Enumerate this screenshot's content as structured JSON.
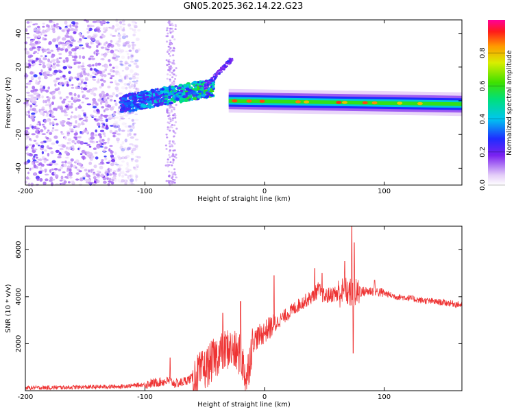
{
  "title": "GN05.2025.362.14.22.G23",
  "chart_data": [
    {
      "type": "heatmap",
      "xlabel": "Height of straight line (km)",
      "ylabel": "Frequency (Hz)",
      "xlim": [
        -200,
        165
      ],
      "ylim": [
        -50,
        48
      ],
      "xticks": [
        "-200",
        "-100",
        "0",
        "100"
      ],
      "xtick_values": [
        -200,
        -100,
        0,
        100
      ],
      "yticks": [
        "-40",
        "-20",
        "0",
        "20",
        "40"
      ],
      "ytick_values": [
        -40,
        -20,
        0,
        20,
        40
      ],
      "colorbar": {
        "label": "Normalized spectral amplitude",
        "ticks": [
          "0.0",
          "0.2",
          "0.4",
          "0.6",
          "0.8"
        ],
        "tick_values": [
          0.0,
          0.2,
          0.4,
          0.6,
          0.8
        ],
        "range": [
          0,
          1
        ]
      },
      "features": {
        "noise_region": [
          -200,
          -125
        ],
        "spread_band_at": [
          -80,
          -76
        ],
        "streak_start": [
          -120,
          -2
        ],
        "streak_end": [
          -42,
          8
        ],
        "fork": [
          [
            -50,
            8
          ],
          [
            -27,
            25
          ]
        ],
        "line_start": [
          -30,
          0
        ],
        "line_end": [
          165,
          -2
        ]
      }
    },
    {
      "type": "line",
      "xlabel": "Height of straight line (km)",
      "ylabel": "SNR (10 * v/v)",
      "xlim": [
        -200,
        165
      ],
      "ylim": [
        0,
        7000
      ],
      "xticks": [
        "-200",
        "-100",
        "0",
        "100"
      ],
      "xtick_values": [
        -200,
        -100,
        0,
        100
      ],
      "yticks": [
        "2000",
        "4000",
        "6000"
      ],
      "ytick_values": [
        2000,
        4000,
        6000
      ],
      "color": "#ee3333",
      "series": [
        {
          "name": "SNR",
          "x": [
            -200,
            -150,
            -120,
            -100,
            -90,
            -80,
            -75,
            -70,
            -60,
            -50,
            -40,
            -30,
            -20,
            -15,
            -10,
            -5,
            0,
            10,
            20,
            30,
            40,
            45,
            50,
            60,
            70,
            75,
            80,
            90,
            100,
            110,
            120,
            130,
            140,
            150,
            165
          ],
          "y": [
            120,
            150,
            180,
            260,
            350,
            420,
            300,
            340,
            550,
            900,
            1500,
            1800,
            1500,
            500,
            2100,
            2300,
            2500,
            2900,
            3300,
            3700,
            4000,
            4300,
            4000,
            4150,
            4200,
            4100,
            4200,
            4250,
            4150,
            4000,
            3950,
            3850,
            3800,
            3750,
            3650
          ]
        }
      ],
      "spikes": [
        {
          "x": -79,
          "y": 1400
        },
        {
          "x": -35,
          "y": 3300
        },
        {
          "x": -20,
          "y": 3800
        },
        {
          "x": 8,
          "y": 4900
        },
        {
          "x": 42,
          "y": 5200
        },
        {
          "x": 48,
          "y": 5000
        },
        {
          "x": 67,
          "y": 5500
        },
        {
          "x": 73,
          "y": 7000
        },
        {
          "x": 75,
          "y": 6300
        },
        {
          "x": 74,
          "y": 1600
        },
        {
          "x": 92,
          "y": 4700
        }
      ]
    }
  ]
}
